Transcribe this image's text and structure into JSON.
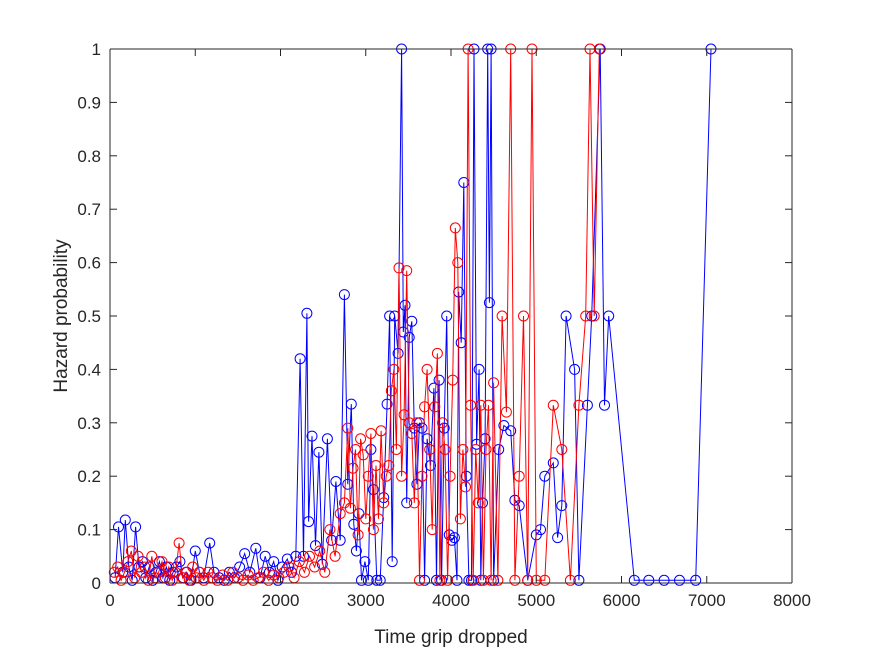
{
  "chart_data": {
    "type": "line",
    "xlabel": "Time grip dropped",
    "ylabel": "Hazard probability",
    "xlim": [
      0,
      8000
    ],
    "ylim": [
      0,
      1
    ],
    "x_ticks": [
      0,
      1000,
      2000,
      3000,
      4000,
      5000,
      6000,
      7000,
      8000
    ],
    "x_tick_labels": [
      "0",
      "1000",
      "2000",
      "3000",
      "4000",
      "5000",
      "6000",
      "7000",
      "8000"
    ],
    "y_ticks": [
      0,
      0.1,
      0.2,
      0.3,
      0.4,
      0.5,
      0.6,
      0.7,
      0.8,
      0.9,
      1
    ],
    "y_tick_labels": [
      "0",
      "0.1",
      "0.2",
      "0.3",
      "0.4",
      "0.5",
      "0.6",
      "0.7",
      "0.8",
      "0.9",
      "1"
    ],
    "grid": false,
    "marker": "circle",
    "series": [
      {
        "color": "#0000ff",
        "points": [
          [
            60,
            0.01
          ],
          [
            100,
            0.105
          ],
          [
            150,
            0.02
          ],
          [
            180,
            0.118
          ],
          [
            220,
            0.03
          ],
          [
            260,
            0.005
          ],
          [
            300,
            0.105
          ],
          [
            340,
            0.03
          ],
          [
            380,
            0.04
          ],
          [
            420,
            0.01
          ],
          [
            460,
            0.03
          ],
          [
            500,
            0.005
          ],
          [
            540,
            0.02
          ],
          [
            580,
            0.04
          ],
          [
            620,
            0.01
          ],
          [
            660,
            0.03
          ],
          [
            700,
            0.005
          ],
          [
            740,
            0.02
          ],
          [
            780,
            0.03
          ],
          [
            820,
            0.04
          ],
          [
            860,
            0.01
          ],
          [
            900,
            0.02
          ],
          [
            950,
            0.005
          ],
          [
            1000,
            0.06
          ],
          [
            1050,
            0.02
          ],
          [
            1100,
            0.01
          ],
          [
            1170,
            0.075
          ],
          [
            1220,
            0.02
          ],
          [
            1280,
            0.01
          ],
          [
            1340,
            0.005
          ],
          [
            1400,
            0.02
          ],
          [
            1460,
            0.01
          ],
          [
            1520,
            0.03
          ],
          [
            1580,
            0.055
          ],
          [
            1640,
            0.02
          ],
          [
            1710,
            0.065
          ],
          [
            1760,
            0.01
          ],
          [
            1820,
            0.05
          ],
          [
            1870,
            0.02
          ],
          [
            1920,
            0.04
          ],
          [
            1970,
            0.005
          ],
          [
            2020,
            0.03
          ],
          [
            2080,
            0.045
          ],
          [
            2130,
            0.02
          ],
          [
            2180,
            0.05
          ],
          [
            2230,
            0.42
          ],
          [
            2270,
            0.05
          ],
          [
            2310,
            0.505
          ],
          [
            2330,
            0.115
          ],
          [
            2370,
            0.275
          ],
          [
            2410,
            0.07
          ],
          [
            2450,
            0.245
          ],
          [
            2490,
            0.035
          ],
          [
            2550,
            0.27
          ],
          [
            2600,
            0.08
          ],
          [
            2650,
            0.19
          ],
          [
            2700,
            0.08
          ],
          [
            2750,
            0.54
          ],
          [
            2790,
            0.185
          ],
          [
            2830,
            0.335
          ],
          [
            2860,
            0.11
          ],
          [
            2890,
            0.06
          ],
          [
            2920,
            0.13
          ],
          [
            2950,
            0.005
          ],
          [
            2990,
            0.04
          ],
          [
            3030,
            0.005
          ],
          [
            3060,
            0.25
          ],
          [
            3090,
            0.175
          ],
          [
            3130,
            0.005
          ],
          [
            3170,
            0.005
          ],
          [
            3210,
            0.16
          ],
          [
            3250,
            0.335
          ],
          [
            3280,
            0.5
          ],
          [
            3310,
            0.04
          ],
          [
            3340,
            0.5
          ],
          [
            3380,
            0.43
          ],
          [
            3420,
            1.0
          ],
          [
            3440,
            0.47
          ],
          [
            3460,
            0.52
          ],
          [
            3480,
            0.15
          ],
          [
            3510,
            0.46
          ],
          [
            3540,
            0.49
          ],
          [
            3570,
            0.29
          ],
          [
            3600,
            0.185
          ],
          [
            3630,
            0.3
          ],
          [
            3660,
            0.29
          ],
          [
            3690,
            0.005
          ],
          [
            3720,
            0.27
          ],
          [
            3760,
            0.22
          ],
          [
            3800,
            0.365
          ],
          [
            3830,
            0.005
          ],
          [
            3860,
            0.38
          ],
          [
            3890,
            0.005
          ],
          [
            3920,
            0.29
          ],
          [
            3950,
            0.5
          ],
          [
            3980,
            0.09
          ],
          [
            4010,
            0.08
          ],
          [
            4040,
            0.085
          ],
          [
            4070,
            0.005
          ],
          [
            4090,
            0.545
          ],
          [
            4120,
            0.45
          ],
          [
            4150,
            0.75
          ],
          [
            4180,
            0.2
          ],
          [
            4210,
            0.005
          ],
          [
            4240,
            0.005
          ],
          [
            4270,
            1.0
          ],
          [
            4300,
            0.26
          ],
          [
            4330,
            0.4
          ],
          [
            4350,
            0.005
          ],
          [
            4370,
            0.15
          ],
          [
            4400,
            0.27
          ],
          [
            4430,
            1.0
          ],
          [
            4450,
            0.525
          ],
          [
            4470,
            1.0
          ],
          [
            4500,
            0.005
          ],
          [
            4560,
            0.25
          ],
          [
            4620,
            0.295
          ],
          [
            4700,
            0.285
          ],
          [
            4750,
            0.155
          ],
          [
            4800,
            0.145
          ],
          [
            4900,
            0.005
          ],
          [
            5000,
            0.09
          ],
          [
            5050,
            0.1
          ],
          [
            5100,
            0.2
          ],
          [
            5200,
            0.225
          ],
          [
            5250,
            0.085
          ],
          [
            5300,
            0.145
          ],
          [
            5350,
            0.5
          ],
          [
            5450,
            0.4
          ],
          [
            5500,
            0.005
          ],
          [
            5600,
            0.333
          ],
          [
            5650,
            0.5
          ],
          [
            5750,
            1.0
          ],
          [
            5800,
            0.333
          ],
          [
            5850,
            0.5
          ],
          [
            6150,
            0.005
          ],
          [
            6320,
            0.005
          ],
          [
            6500,
            0.005
          ],
          [
            6680,
            0.005
          ],
          [
            6870,
            0.005
          ],
          [
            7050,
            1.0
          ]
        ]
      },
      {
        "color": "#ff0000",
        "points": [
          [
            50,
            0.02
          ],
          [
            90,
            0.03
          ],
          [
            130,
            0.005
          ],
          [
            170,
            0.02
          ],
          [
            210,
            0.04
          ],
          [
            250,
            0.06
          ],
          [
            290,
            0.01
          ],
          [
            330,
            0.05
          ],
          [
            370,
            0.02
          ],
          [
            410,
            0.03
          ],
          [
            450,
            0.005
          ],
          [
            490,
            0.05
          ],
          [
            530,
            0.01
          ],
          [
            570,
            0.02
          ],
          [
            610,
            0.04
          ],
          [
            650,
            0.01
          ],
          [
            690,
            0.03
          ],
          [
            730,
            0.005
          ],
          [
            770,
            0.02
          ],
          [
            810,
            0.075
          ],
          [
            850,
            0.01
          ],
          [
            890,
            0.02
          ],
          [
            930,
            0.005
          ],
          [
            970,
            0.03
          ],
          [
            1010,
            0.01
          ],
          [
            1050,
            0.02
          ],
          [
            1100,
            0.005
          ],
          [
            1150,
            0.02
          ],
          [
            1200,
            0.01
          ],
          [
            1260,
            0.005
          ],
          [
            1320,
            0.015
          ],
          [
            1380,
            0.005
          ],
          [
            1440,
            0.02
          ],
          [
            1500,
            0.01
          ],
          [
            1560,
            0.005
          ],
          [
            1620,
            0.015
          ],
          [
            1680,
            0.005
          ],
          [
            1740,
            0.01
          ],
          [
            1800,
            0.02
          ],
          [
            1860,
            0.005
          ],
          [
            1920,
            0.015
          ],
          [
            1980,
            0.01
          ],
          [
            2040,
            0.02
          ],
          [
            2100,
            0.03
          ],
          [
            2160,
            0.01
          ],
          [
            2220,
            0.04
          ],
          [
            2280,
            0.02
          ],
          [
            2340,
            0.05
          ],
          [
            2400,
            0.03
          ],
          [
            2460,
            0.06
          ],
          [
            2520,
            0.02
          ],
          [
            2580,
            0.1
          ],
          [
            2640,
            0.05
          ],
          [
            2700,
            0.13
          ],
          [
            2750,
            0.15
          ],
          [
            2790,
            0.29
          ],
          [
            2820,
            0.14
          ],
          [
            2850,
            0.215
          ],
          [
            2880,
            0.25
          ],
          [
            2910,
            0.09
          ],
          [
            2940,
            0.27
          ],
          [
            2970,
            0.24
          ],
          [
            3000,
            0.12
          ],
          [
            3030,
            0.2
          ],
          [
            3060,
            0.28
          ],
          [
            3090,
            0.1
          ],
          [
            3120,
            0.22
          ],
          [
            3150,
            0.12
          ],
          [
            3180,
            0.285
          ],
          [
            3210,
            0.15
          ],
          [
            3240,
            0.2
          ],
          [
            3270,
            0.22
          ],
          [
            3300,
            0.36
          ],
          [
            3330,
            0.4
          ],
          [
            3360,
            0.25
          ],
          [
            3390,
            0.59
          ],
          [
            3420,
            0.2
          ],
          [
            3450,
            0.315
          ],
          [
            3480,
            0.585
          ],
          [
            3510,
            0.3
          ],
          [
            3540,
            0.28
          ],
          [
            3570,
            0.15
          ],
          [
            3600,
            0.3
          ],
          [
            3630,
            0.005
          ],
          [
            3660,
            0.2
          ],
          [
            3690,
            0.33
          ],
          [
            3720,
            0.4
          ],
          [
            3750,
            0.25
          ],
          [
            3780,
            0.1
          ],
          [
            3810,
            0.33
          ],
          [
            3840,
            0.43
          ],
          [
            3870,
            0.005
          ],
          [
            3900,
            0.3
          ],
          [
            3930,
            0.25
          ],
          [
            3960,
            0.005
          ],
          [
            3990,
            0.2
          ],
          [
            4020,
            0.38
          ],
          [
            4050,
            0.665
          ],
          [
            4080,
            0.6
          ],
          [
            4110,
            0.12
          ],
          [
            4140,
            0.25
          ],
          [
            4170,
            0.18
          ],
          [
            4200,
            1.0
          ],
          [
            4230,
            0.333
          ],
          [
            4260,
            0.005
          ],
          [
            4290,
            0.25
          ],
          [
            4320,
            0.15
          ],
          [
            4350,
            0.333
          ],
          [
            4380,
            0.005
          ],
          [
            4410,
            0.25
          ],
          [
            4440,
            0.333
          ],
          [
            4470,
            0.005
          ],
          [
            4500,
            0.375
          ],
          [
            4550,
            0.005
          ],
          [
            4600,
            0.5
          ],
          [
            4650,
            0.32
          ],
          [
            4700,
            1.0
          ],
          [
            4750,
            0.005
          ],
          [
            4800,
            0.2
          ],
          [
            4850,
            0.5
          ],
          [
            4900,
            0.005
          ],
          [
            4950,
            1.0
          ],
          [
            5000,
            0.005
          ],
          [
            5100,
            0.005
          ],
          [
            5200,
            0.333
          ],
          [
            5300,
            0.25
          ],
          [
            5400,
            0.005
          ],
          [
            5500,
            0.333
          ],
          [
            5580,
            0.5
          ],
          [
            5630,
            1.0
          ],
          [
            5680,
            0.5
          ],
          [
            5740,
            1.0
          ]
        ]
      }
    ]
  }
}
